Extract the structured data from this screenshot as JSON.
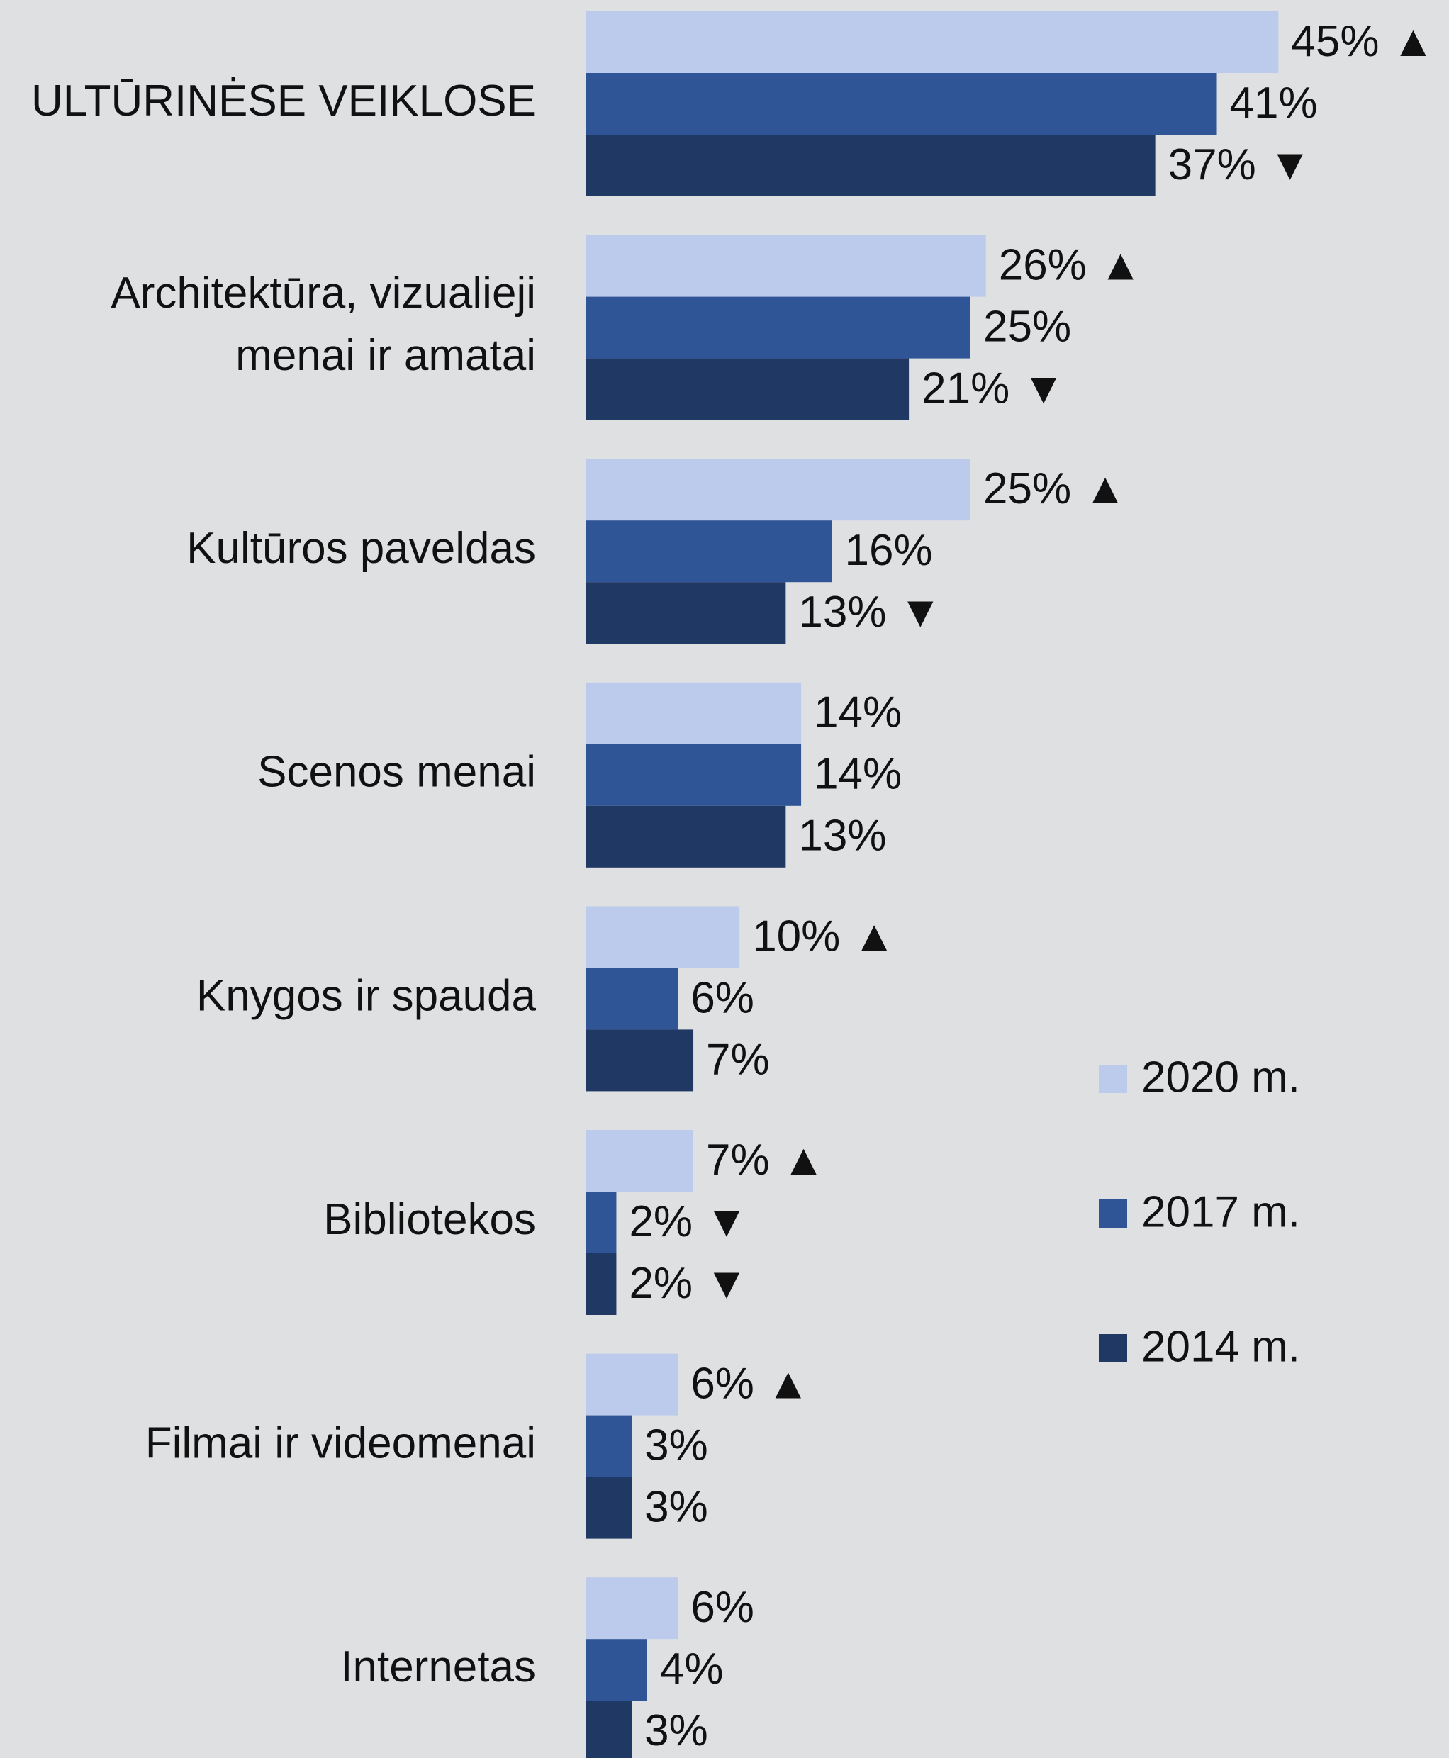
{
  "chart_data": {
    "type": "bar",
    "orientation": "horizontal",
    "categories": [
      "ULTŪRINĖSE VEIKLOSE",
      "Architektūra, vizualieji menai ir amatai",
      "Kultūros paveldas",
      "Scenos menai",
      "Knygos ir spauda",
      "Bibliotekos",
      "Filmai ir videomenai",
      "Internetas"
    ],
    "series": [
      {
        "name": "2020 m.",
        "color": "#bccbeb",
        "values": [
          45,
          26,
          25,
          14,
          10,
          7,
          6,
          6
        ],
        "value_labels": [
          "45% ▲",
          "26% ▲",
          "25% ▲",
          "14%",
          "10% ▲",
          "7% ▲",
          "6% ▲",
          "6%"
        ]
      },
      {
        "name": "2017 m.",
        "color": "#2f5597",
        "values": [
          41,
          25,
          16,
          14,
          6,
          2,
          3,
          4
        ],
        "value_labels": [
          "41%",
          "25%",
          "16%",
          "14%",
          "6%",
          "2% ▼",
          "3%",
          "4%"
        ]
      },
      {
        "name": "2014 m.",
        "color": "#203864",
        "values": [
          37,
          21,
          13,
          13,
          7,
          2,
          3,
          3
        ],
        "value_labels": [
          "37% ▼",
          "21% ▼",
          "13% ▼",
          "13%",
          "7%",
          "2% ▼",
          "3%",
          "3%"
        ]
      }
    ],
    "legend": "right"
  }
}
